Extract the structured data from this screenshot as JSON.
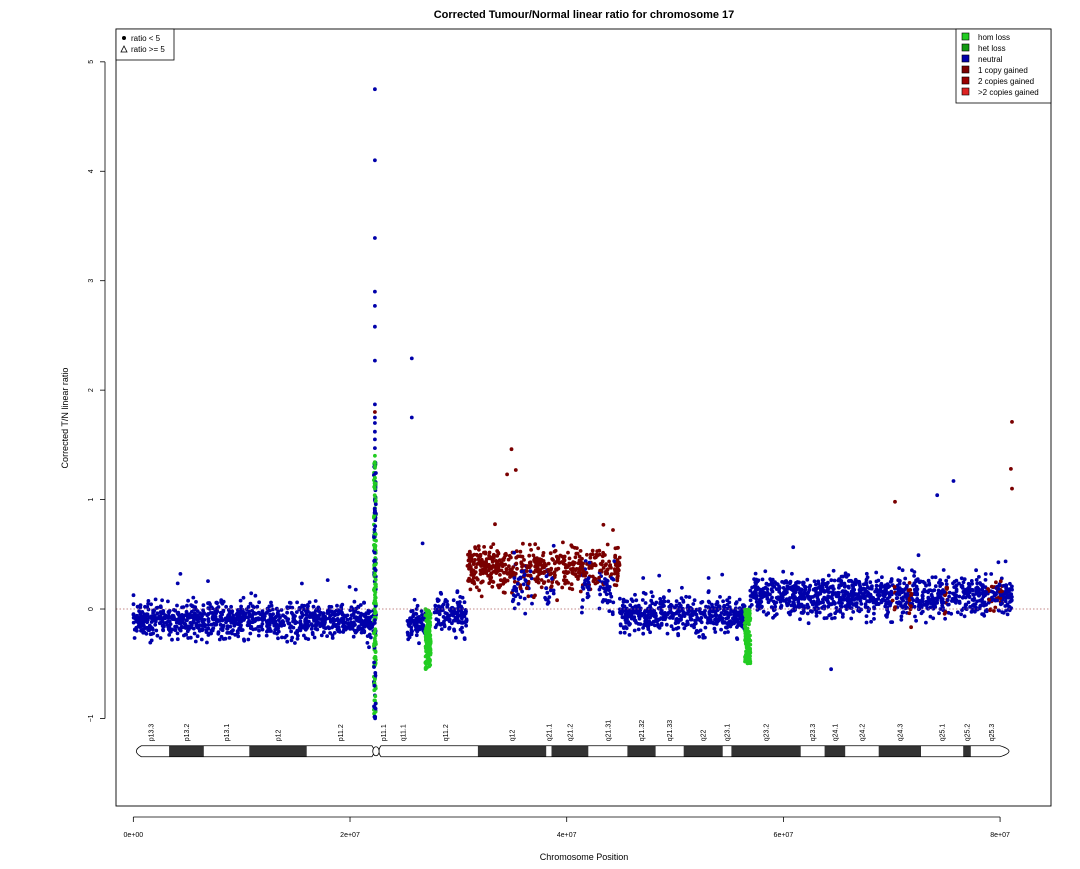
{
  "chart_data": {
    "type": "scatter",
    "title": "Corrected Tumour/Normal linear ratio for chromosome  17",
    "xlabel": "Chromosome Position",
    "ylabel": "Corrected T/N linear ratio",
    "xlim": [
      -1600000,
      84700000
    ],
    "ylim": [
      -1.8,
      5.3
    ],
    "x_ticks": [
      {
        "value": 0,
        "label": "0e+00"
      },
      {
        "value": 20000000,
        "label": "2e+07"
      },
      {
        "value": 40000000,
        "label": "4e+07"
      },
      {
        "value": 60000000,
        "label": "6e+07"
      },
      {
        "value": 80000000,
        "label": "8e+07"
      }
    ],
    "y_ticks": [
      {
        "value": -1,
        "label": "−1"
      },
      {
        "value": 0,
        "label": "0"
      },
      {
        "value": 1,
        "label": "1"
      },
      {
        "value": 2,
        "label": "2"
      },
      {
        "value": 3,
        "label": "3"
      },
      {
        "value": 4,
        "label": "4"
      },
      {
        "value": 5,
        "label": "5"
      }
    ],
    "reference_line": {
      "y": 0,
      "style": "dotted",
      "color": "#b06060"
    },
    "grid": false,
    "legend_shape": {
      "placement": "top-left",
      "entries": [
        {
          "label": "ratio < 5",
          "marker": "filled-circle"
        },
        {
          "label": "ratio >= 5",
          "marker": "open-triangle"
        }
      ]
    },
    "legend_state": {
      "placement": "top-right",
      "entries": [
        {
          "label": "hom loss",
          "color": "#22cc22"
        },
        {
          "label": "het loss",
          "color": "#119911"
        },
        {
          "label": "neutral",
          "color": "#0000aa"
        },
        {
          "label": "1 copy gained",
          "color": "#7a0000"
        },
        {
          "label": "2 copies gained",
          "color": "#990000"
        },
        {
          "label": ">2 copies gained",
          "color": "#dd2222"
        }
      ]
    },
    "segments": [
      {
        "state": "neutral",
        "x_start": 0,
        "x_end": 22200000,
        "mean": -0.1,
        "spread": 0.35
      },
      {
        "state": "neutral",
        "x_start": 25300000,
        "x_end": 27000000,
        "mean": -0.12,
        "spread": 0.33
      },
      {
        "state": "neutral",
        "x_start": 27800000,
        "x_end": 30800000,
        "mean": -0.05,
        "spread": 0.35
      },
      {
        "state": "1 copy gained",
        "x_start": 30800000,
        "x_end": 44900000,
        "mean": 0.38,
        "spread": 0.42
      },
      {
        "state": "neutral",
        "x_start": 44900000,
        "x_end": 56600000,
        "mean": -0.05,
        "spread": 0.35
      },
      {
        "state": "neutral",
        "x_start": 56900000,
        "x_end": 81100000,
        "mean": 0.12,
        "spread": 0.4
      }
    ],
    "gained_sub_blocks": [
      {
        "x_start": 35000000,
        "x_end": 37000000
      },
      {
        "x_start": 38000000,
        "x_end": 38800000
      },
      {
        "x_start": 41400000,
        "x_end": 42200000
      },
      {
        "x_start": 43000000,
        "x_end": 44400000
      }
    ],
    "loss_clusters": [
      {
        "state": "hom loss",
        "x": 27200000,
        "y_min": -0.55,
        "y_max": 0.0
      },
      {
        "state": "hom loss",
        "x": 56700000,
        "y_min": -0.5,
        "y_max": 0.0
      }
    ],
    "centromere_stack": {
      "x": 22300000,
      "points": [
        {
          "y": 4.75,
          "state": "neutral"
        },
        {
          "y": 4.1,
          "state": "neutral"
        },
        {
          "y": 3.39,
          "state": "neutral"
        },
        {
          "y": 2.9,
          "state": "neutral"
        },
        {
          "y": 2.77,
          "state": "neutral"
        },
        {
          "y": 2.58,
          "state": "neutral"
        },
        {
          "y": 2.27,
          "state": "neutral"
        },
        {
          "y": 1.87,
          "state": "neutral"
        },
        {
          "y": 1.8,
          "state": "1 copy gained"
        },
        {
          "y": 1.75,
          "state": "neutral"
        },
        {
          "y": 1.7,
          "state": "neutral"
        },
        {
          "y": 1.62,
          "state": "neutral"
        },
        {
          "y": 1.55,
          "state": "neutral"
        },
        {
          "y": 1.47,
          "state": "neutral"
        },
        {
          "y": 1.4,
          "state": "hom loss"
        },
        {
          "y": 1.3,
          "state": "hom loss"
        },
        {
          "y": 1.2,
          "state": "hom loss"
        },
        {
          "y": 1.1,
          "state": "hom loss"
        }
      ],
      "column_range": [
        -1.0,
        1.35
      ]
    },
    "outliers": [
      {
        "x": 25700000,
        "y": 2.29,
        "state": "neutral"
      },
      {
        "x": 25700000,
        "y": 1.75,
        "state": "neutral"
      },
      {
        "x": 34900000,
        "y": 1.46,
        "state": "1 copy gained"
      },
      {
        "x": 35300000,
        "y": 1.27,
        "state": "1 copy gained"
      },
      {
        "x": 34500000,
        "y": 1.23,
        "state": "1 copy gained"
      },
      {
        "x": 81100000,
        "y": 1.71,
        "state": "1 copy gained"
      },
      {
        "x": 81000000,
        "y": 1.28,
        "state": "1 copy gained"
      },
      {
        "x": 81100000,
        "y": 1.1,
        "state": "1 copy gained"
      },
      {
        "x": 74200000,
        "y": 1.04,
        "state": "neutral"
      },
      {
        "x": 75700000,
        "y": 1.17,
        "state": "neutral"
      },
      {
        "x": 70300000,
        "y": 0.98,
        "state": "1 copy gained"
      },
      {
        "x": 64400000,
        "y": -0.55,
        "state": "neutral"
      },
      {
        "x": 26700000,
        "y": 0.6,
        "state": "neutral"
      }
    ],
    "ideogram": {
      "y": -1.3,
      "x_start": 0,
      "x_end": 81100000,
      "centromere": 22300000,
      "bands": [
        {
          "name": "p13.3",
          "start": 0,
          "end": 3300000,
          "stain": "gneg"
        },
        {
          "name": "p13.2",
          "start": 3300000,
          "end": 6500000,
          "stain": "gpos"
        },
        {
          "name": "p13.1",
          "start": 6500000,
          "end": 10700000,
          "stain": "gneg"
        },
        {
          "name": "p12",
          "start": 10700000,
          "end": 16000000,
          "stain": "gpos"
        },
        {
          "name": "p11.2",
          "start": 16000000,
          "end": 22200000,
          "stain": "gneg"
        },
        {
          "name": "p11.1",
          "start": 22200000,
          "end": 24000000,
          "stain": "acen"
        },
        {
          "name": "q11.1",
          "start": 24000000,
          "end": 25800000,
          "stain": "acen"
        },
        {
          "name": "q11.2",
          "start": 25800000,
          "end": 31800000,
          "stain": "gneg"
        },
        {
          "name": "q12",
          "start": 31800000,
          "end": 38100000,
          "stain": "gpos"
        },
        {
          "name": "q21.1",
          "start": 38100000,
          "end": 38600000,
          "stain": "gneg"
        },
        {
          "name": "q21.2",
          "start": 38600000,
          "end": 42000000,
          "stain": "gpos"
        },
        {
          "name": "q21.31",
          "start": 42000000,
          "end": 45600000,
          "stain": "gneg"
        },
        {
          "name": "q21.32",
          "start": 45600000,
          "end": 48200000,
          "stain": "gpos"
        },
        {
          "name": "q21.33",
          "start": 48200000,
          "end": 50800000,
          "stain": "gneg"
        },
        {
          "name": "q22",
          "start": 50800000,
          "end": 54400000,
          "stain": "gpos"
        },
        {
          "name": "q23.1",
          "start": 54400000,
          "end": 55200000,
          "stain": "gneg"
        },
        {
          "name": "q23.2",
          "start": 55200000,
          "end": 61600000,
          "stain": "gpos"
        },
        {
          "name": "q23.3",
          "start": 61600000,
          "end": 63800000,
          "stain": "gneg"
        },
        {
          "name": "q24.1",
          "start": 63800000,
          "end": 65700000,
          "stain": "gpos"
        },
        {
          "name": "q24.2",
          "start": 65700000,
          "end": 68800000,
          "stain": "gneg"
        },
        {
          "name": "q24.3",
          "start": 68800000,
          "end": 72700000,
          "stain": "gpos"
        },
        {
          "name": "q25.1",
          "start": 72700000,
          "end": 76600000,
          "stain": "gneg"
        },
        {
          "name": "q25.2",
          "start": 76600000,
          "end": 77300000,
          "stain": "gpos"
        },
        {
          "name": "q25.3",
          "start": 77300000,
          "end": 81100000,
          "stain": "gneg"
        }
      ]
    },
    "state_colors": {
      "hom loss": "#22cc22",
      "het loss": "#119911",
      "neutral": "#0000aa",
      "1 copy gained": "#7a0000",
      "2 copies gained": "#990000",
      ">2 copies gained": "#dd2222"
    }
  }
}
